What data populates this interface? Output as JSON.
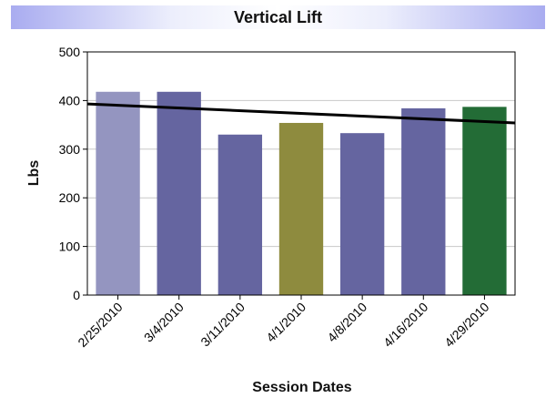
{
  "chart_data": {
    "type": "bar",
    "title": "Vertical Lift",
    "xlabel": "Session Dates",
    "ylabel": "Lbs",
    "ylim": [
      0,
      500
    ],
    "yticks": [
      0,
      100,
      200,
      300,
      400,
      500
    ],
    "grid": true,
    "categories": [
      "2/25/2010",
      "3/4/2010",
      "3/11/2010",
      "4/1/2010",
      "4/8/2010",
      "4/16/2010",
      "4/29/2010"
    ],
    "values": [
      418,
      418,
      330,
      354,
      333,
      384,
      387
    ],
    "bar_colors": [
      "#9495c0",
      "#6565a0",
      "#6565a0",
      "#8e8b3e",
      "#6565a0",
      "#6565a0",
      "#236c36"
    ],
    "trendline": {
      "start": 393,
      "end": 354,
      "color": "#000000"
    }
  }
}
